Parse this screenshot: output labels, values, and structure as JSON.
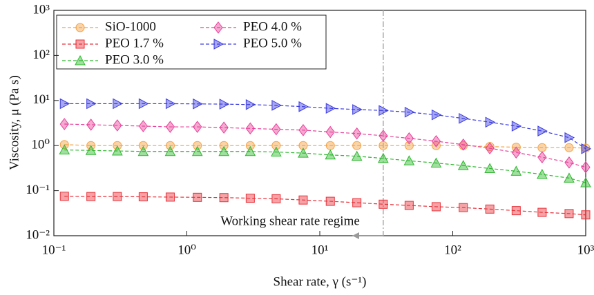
{
  "chart_data": {
    "type": "line",
    "log_x": true,
    "log_y": true,
    "xlabel": "Shear rate, γ (s⁻¹)",
    "ylabel": "Viscosity, μ (Pa s)",
    "xlim": [
      0.1,
      1000
    ],
    "ylim": [
      0.01,
      1000
    ],
    "xticks": [
      {
        "value": 0.1,
        "label": "10⁻¹"
      },
      {
        "value": 1,
        "label": "10⁰"
      },
      {
        "value": 10,
        "label": "10¹"
      },
      {
        "value": 100,
        "label": "10²"
      },
      {
        "value": 1000,
        "label": "10³"
      }
    ],
    "yticks": [
      {
        "value": 0.01,
        "label": "10⁻²"
      },
      {
        "value": 0.1,
        "label": "10⁻¹"
      },
      {
        "value": 1,
        "label": "10⁰"
      },
      {
        "value": 10,
        "label": "10¹"
      },
      {
        "value": 100,
        "label": "10²"
      },
      {
        "value": 1000,
        "label": "10³"
      }
    ],
    "legend": "upper left",
    "reference_line_x": 30,
    "annotation": "Working shear rate regime",
    "x": [
      0.12,
      0.19,
      0.3,
      0.47,
      0.75,
      1.2,
      1.9,
      3,
      4.7,
      7.5,
      12,
      19,
      30,
      47,
      75,
      120,
      190,
      300,
      470,
      750,
      1000
    ],
    "series": [
      {
        "name": "SiO-1000",
        "color": "#f5a040",
        "marker": "circle",
        "values": [
          1.05,
          1.0,
          1.0,
          1.0,
          1.0,
          1.0,
          1.0,
          1.0,
          1.0,
          1.0,
          1.0,
          1.0,
          1.0,
          1.0,
          1.0,
          1.0,
          0.95,
          0.92,
          0.9,
          0.9,
          0.88
        ]
      },
      {
        "name": "PEO 1.7 %",
        "color": "#e8323a",
        "marker": "square",
        "values": [
          0.075,
          0.074,
          0.074,
          0.073,
          0.072,
          0.071,
          0.07,
          0.068,
          0.066,
          0.062,
          0.058,
          0.054,
          0.05,
          0.047,
          0.044,
          0.042,
          0.039,
          0.036,
          0.033,
          0.031,
          0.029
        ]
      },
      {
        "name": "PEO 3.0 %",
        "color": "#2db82d",
        "marker": "triangle",
        "values": [
          0.8,
          0.78,
          0.76,
          0.74,
          0.74,
          0.74,
          0.74,
          0.74,
          0.72,
          0.68,
          0.62,
          0.58,
          0.52,
          0.46,
          0.41,
          0.36,
          0.31,
          0.27,
          0.23,
          0.19,
          0.15
        ]
      },
      {
        "name": "PEO 4.0 %",
        "color": "#e8409a",
        "marker": "diamond",
        "values": [
          3.0,
          2.9,
          2.8,
          2.7,
          2.6,
          2.6,
          2.5,
          2.4,
          2.3,
          2.2,
          2.0,
          1.85,
          1.65,
          1.45,
          1.25,
          1.05,
          0.87,
          0.7,
          0.55,
          0.42,
          0.33
        ]
      },
      {
        "name": "PEO 5.0 %",
        "color": "#3a3ae0",
        "marker": "right-triangle",
        "values": [
          8.5,
          8.5,
          8.5,
          8.5,
          8.5,
          8.4,
          8.3,
          8.1,
          7.8,
          7.3,
          6.7,
          6.3,
          6.0,
          5.5,
          4.8,
          4.0,
          3.3,
          2.7,
          2.1,
          1.5,
          0.85
        ]
      }
    ]
  }
}
